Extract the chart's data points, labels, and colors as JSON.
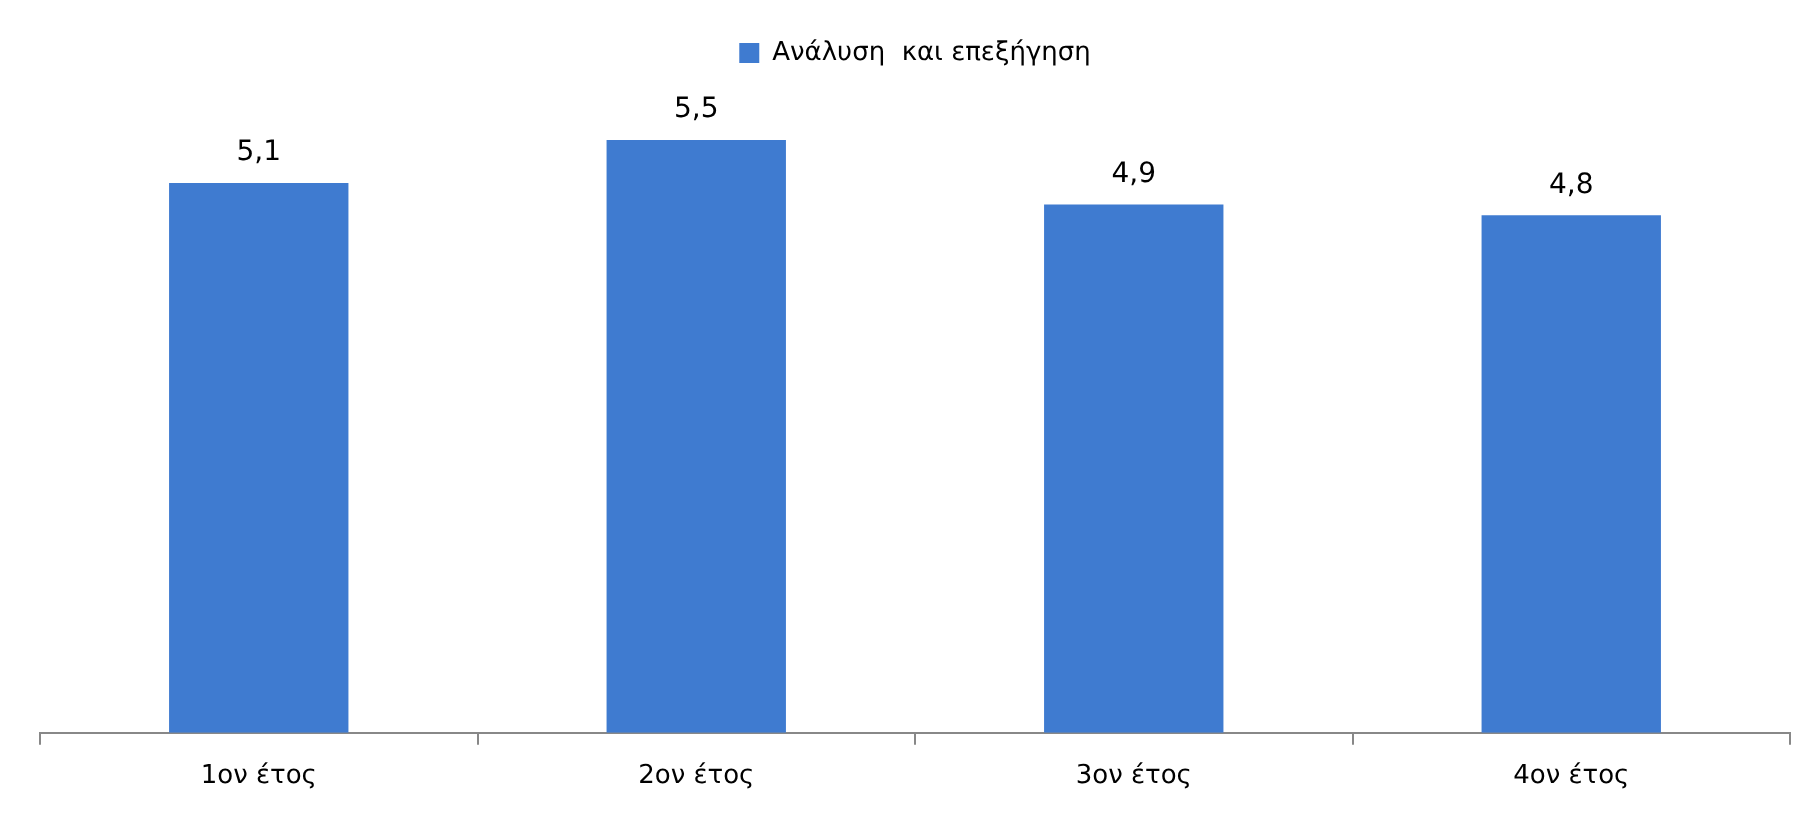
{
  "chart_data": {
    "type": "bar",
    "categories": [
      "1ον έτος",
      "2ον έτος",
      "3ον έτος",
      "4ον έτος"
    ],
    "series": [
      {
        "name": "Ανάλυση  και επεξήγηση",
        "color": "#3f7bd0",
        "values": [
          5.1,
          5.5,
          4.9,
          4.8
        ],
        "value_labels": [
          "5,1",
          "5,5",
          "4,9",
          "4,8"
        ]
      }
    ],
    "tick_labels": "x",
    "legend": "top"
  }
}
